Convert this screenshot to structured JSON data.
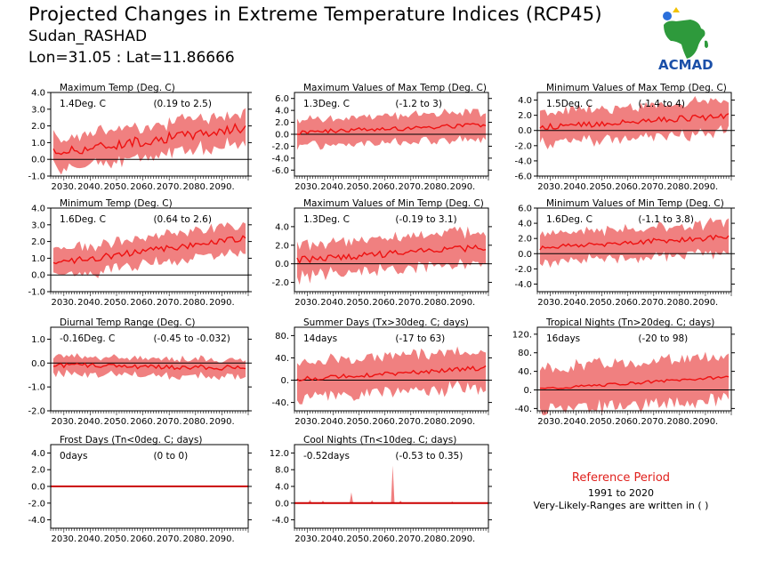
{
  "header": {
    "title": "Projected Changes in Extreme Temperature Indices (RCP45)",
    "subtitle": "Sudan_RASHAD",
    "coords": "Lon=31.05 : Lat=11.86666"
  },
  "logo": {
    "text": "ACMAD",
    "icon": "africa-map-logo-icon"
  },
  "reference": {
    "title": "Reference Period",
    "years": "1991 to 2020",
    "note": "Very-Likely-Ranges are written in ( )"
  },
  "colors": {
    "band": "#f08080",
    "line": "#ee1111",
    "zero": "#000000"
  },
  "chart_data": [
    {
      "type": "area",
      "title": "Maximum Temp (Deg. C)",
      "change": "1.4Deg. C",
      "range": "(0.19 to 2.5)",
      "ylim": [
        -1,
        4
      ],
      "yticks": [
        "4.0",
        "3.0",
        "2.0",
        "1.0",
        "0.0",
        "-1.0"
      ],
      "xticks": [
        "2030.",
        "2040.",
        "2050.",
        "2060.",
        "2070.",
        "2080.",
        "2090."
      ],
      "x_start": 2025,
      "x_end": 2100,
      "start": 0.4,
      "end": 1.9,
      "spread": 0.9,
      "noise": 0.3
    },
    {
      "type": "area",
      "title": "Maximum Values of Max Temp (Deg. C)",
      "change": "1.3Deg. C",
      "range": "(-1.2 to 3)",
      "ylim": [
        -7,
        7
      ],
      "yticks": [
        "6.0",
        "4.0",
        "2.0",
        "0.0",
        "-2.0",
        "-4.0",
        "-6.0"
      ],
      "xticks": [
        "2030.",
        "2040.",
        "2050.",
        "2060.",
        "2070.",
        "2080.",
        "2090."
      ],
      "x_start": 2025,
      "x_end": 2100,
      "start": 0.3,
      "end": 1.6,
      "spread": 2.2,
      "noise": 0.4
    },
    {
      "type": "area",
      "title": "Minimum Values of Max Temp (Deg. C)",
      "change": "1.5Deg. C",
      "range": "(-1.4 to 4)",
      "ylim": [
        -6,
        5
      ],
      "yticks": [
        "4.0",
        "2.0",
        "0.0",
        "-2.0",
        "-4.0",
        "-6.0"
      ],
      "xticks": [
        "2030.",
        "2040.",
        "2050.",
        "2060.",
        "2070.",
        "2080.",
        "2090."
      ],
      "x_start": 2025,
      "x_end": 2100,
      "start": 0.4,
      "end": 1.9,
      "spread": 2.0,
      "noise": 0.4
    },
    {
      "type": "area",
      "title": "Minimum Temp (Deg. C)",
      "change": "1.6Deg. C",
      "range": "(0.64 to 2.6)",
      "ylim": [
        -1,
        4
      ],
      "yticks": [
        "4.0",
        "3.0",
        "2.0",
        "1.0",
        "0.0",
        "-1.0"
      ],
      "xticks": [
        "2030.",
        "2040.",
        "2050.",
        "2060.",
        "2070.",
        "2080.",
        "2090."
      ],
      "x_start": 2025,
      "x_end": 2100,
      "start": 0.7,
      "end": 2.2,
      "spread": 0.8,
      "noise": 0.2
    },
    {
      "type": "area",
      "title": "Maximum Values of Min Temp (Deg. C)",
      "change": "1.3Deg. C",
      "range": "(-0.19 to 3.1)",
      "ylim": [
        -3,
        6
      ],
      "yticks": [
        "4.0",
        "2.0",
        "0.0",
        "-2.0"
      ],
      "xticks": [
        "2030.",
        "2040.",
        "2050.",
        "2060.",
        "2070.",
        "2080.",
        "2090."
      ],
      "x_start": 2025,
      "x_end": 2100,
      "start": 0.4,
      "end": 1.8,
      "spread": 1.7,
      "noise": 0.35
    },
    {
      "type": "area",
      "title": "Minimum Values of Min Temp (Deg. C)",
      "change": "1.6Deg. C",
      "range": "(-1.1 to 3.8)",
      "ylim": [
        -5,
        6
      ],
      "yticks": [
        "6.0",
        "4.0",
        "2.0",
        "0.0",
        "-2.0",
        "-4.0"
      ],
      "xticks": [
        "2030.",
        "2040.",
        "2050.",
        "2060.",
        "2070.",
        "2080.",
        "2090."
      ],
      "x_start": 2025,
      "x_end": 2100,
      "start": 0.8,
      "end": 2.2,
      "spread": 1.9,
      "noise": 0.35
    },
    {
      "type": "area",
      "title": "Diurnal Temp Range (Deg. C)",
      "change": "-0.16Deg. C",
      "range": "(-0.45 to -0.032)",
      "ylim": [
        -2,
        1.5
      ],
      "yticks": [
        "1.0",
        "0.0",
        "-1.0",
        "-2.0"
      ],
      "xticks": [
        "2030.",
        "2040.",
        "2050.",
        "2060.",
        "2070.",
        "2080.",
        "2090."
      ],
      "x_start": 2025,
      "x_end": 2100,
      "start": -0.1,
      "end": -0.2,
      "spread": 0.35,
      "noise": 0.1
    },
    {
      "type": "area",
      "title": "Summer Days (Tx>30deg. C; days)",
      "change": "14days",
      "range": "(-17 to 63)",
      "ylim": [
        -55,
        95
      ],
      "yticks": [
        "80.",
        "40.",
        "0.",
        "-40."
      ],
      "xticks": [
        "2030.",
        "2040.",
        "2050.",
        "2060.",
        "2070.",
        "2080.",
        "2090."
      ],
      "x_start": 2025,
      "x_end": 2100,
      "start": 2,
      "end": 22,
      "spread": 32,
      "noise": 4
    },
    {
      "type": "area",
      "title": "Tropical Nights (Tn>20deg. C; days)",
      "change": "16days",
      "range": "(-20 to 98)",
      "ylim": [
        -45,
        135
      ],
      "yticks": [
        "120.",
        "80.",
        "40.",
        "0.",
        "-40."
      ],
      "xticks": [
        "2030.",
        "2040.",
        "2050.",
        "2060.",
        "2070.",
        "2080.",
        "2090."
      ],
      "x_start": 2025,
      "x_end": 2100,
      "start": 2,
      "end": 28,
      "spread": 45,
      "noise": 3
    },
    {
      "type": "area",
      "title": "Frost Days (Tn<0deg. C; days)",
      "change": "0days",
      "range": "(0 to 0)",
      "ylim": [
        -5,
        5
      ],
      "yticks": [
        "4.0",
        "2.0",
        "0.0",
        "-2.0",
        "-4.0"
      ],
      "xticks": [
        "2030.",
        "2040.",
        "2050.",
        "2060.",
        "2070.",
        "2080.",
        "2090."
      ],
      "x_start": 2025,
      "x_end": 2100,
      "start": 0,
      "end": 0,
      "spread": 0,
      "noise": 0
    },
    {
      "type": "area",
      "title": "Cool Nights (Tn<10deg. C; days)",
      "change": "-0.52days",
      "range": "(-0.53 to 0.35)",
      "ylim": [
        -6,
        14
      ],
      "yticks": [
        "12.0",
        "8.0",
        "4.0",
        "0.0",
        "-4.0"
      ],
      "xticks": [
        "2030.",
        "2040.",
        "2050.",
        "2060.",
        "2070.",
        "2080.",
        "2090."
      ],
      "x_start": 2025,
      "x_end": 2100,
      "start": 0,
      "end": 0,
      "spread": 0,
      "noise": 0,
      "spikes": [
        {
          "x": 2031,
          "v": 0.8
        },
        {
          "x": 2036,
          "v": 0.6
        },
        {
          "x": 2047,
          "v": 2.6
        },
        {
          "x": 2055,
          "v": 0.7
        },
        {
          "x": 2063,
          "v": 9.0
        },
        {
          "x": 2066,
          "v": 0.6
        },
        {
          "x": 2086,
          "v": 0.4
        }
      ]
    }
  ]
}
